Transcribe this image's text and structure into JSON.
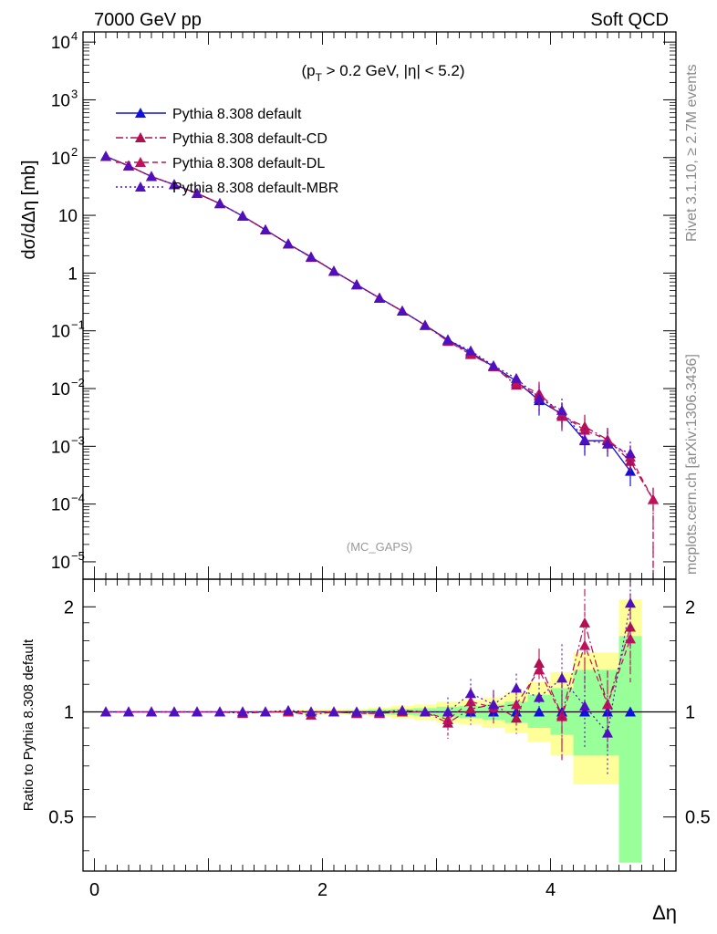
{
  "header": {
    "left": "7000 GeV pp",
    "right": "Soft QCD"
  },
  "side_text": {
    "rivet": "Rivet 3.1.10, ≥ 2.7M events",
    "site": "mcplots.cern.ch [arXiv:1306.3436]"
  },
  "colors": {
    "default": "#1010dd",
    "cd": "#b01050",
    "dl": "#c0105a",
    "mbr": "#5010c0",
    "band_yellow": "#ffff99",
    "band_green": "#99ff99"
  },
  "chart_data": [
    {
      "type": "line",
      "title": "",
      "xlabel": "Δη",
      "ylabel": "dσ/dΔη [mb]",
      "yscale": "log",
      "ylim": [
        5e-06,
        15000
      ],
      "xlim": [
        -0.1,
        5.1
      ],
      "annotation": "(p_T > 0.2 GeV, |η| < 5.2)",
      "watermark": "(MC_GAPS)",
      "legend_position": "top-left",
      "series": [
        {
          "name": "Pythia 8.308 default",
          "x": [
            0.1,
            0.3,
            0.5,
            0.7,
            0.9,
            1.1,
            1.3,
            1.5,
            1.7,
            1.9,
            2.1,
            2.3,
            2.5,
            2.7,
            2.9,
            3.1,
            3.3,
            3.5,
            3.7,
            3.9,
            4.1,
            4.3,
            4.5,
            4.7
          ],
          "y": [
            105,
            72,
            47,
            34,
            24,
            16,
            9.7,
            5.6,
            3.2,
            1.9,
            1.08,
            0.63,
            0.37,
            0.22,
            0.125,
            0.07,
            0.042,
            0.024,
            0.0135,
            0.0062,
            0.0036,
            0.00125,
            0.00125,
            0.00037
          ]
        },
        {
          "name": "Pythia 8.308 default-CD",
          "x": [
            0.1,
            0.3,
            0.5,
            0.7,
            0.9,
            1.1,
            1.3,
            1.5,
            1.7,
            1.9,
            2.1,
            2.3,
            2.5,
            2.7,
            2.9,
            3.1,
            3.3,
            3.5,
            3.7,
            3.9,
            4.1,
            4.3,
            4.5,
            4.7,
            4.9
          ],
          "y": [
            105,
            72,
            47,
            34,
            24,
            16,
            9.7,
            5.6,
            3.2,
            1.87,
            1.08,
            0.63,
            0.37,
            0.22,
            0.125,
            0.066,
            0.039,
            0.024,
            0.0115,
            0.0075,
            0.0033,
            0.0022,
            0.0013,
            0.00055,
            0.00012
          ]
        },
        {
          "name": "Pythia 8.308 default-DL",
          "x": [
            0.1,
            0.3,
            0.5,
            0.7,
            0.9,
            1.1,
            1.3,
            1.5,
            1.7,
            1.9,
            2.1,
            2.3,
            2.5,
            2.7,
            2.9,
            3.1,
            3.3,
            3.5,
            3.7,
            3.9,
            4.1,
            4.3,
            4.5,
            4.7,
            4.9
          ],
          "y": [
            105,
            72,
            47,
            34,
            24,
            16,
            9.7,
            5.6,
            3.2,
            1.9,
            1.08,
            0.63,
            0.37,
            0.22,
            0.125,
            0.068,
            0.04,
            0.024,
            0.0125,
            0.0082,
            0.0035,
            0.0019,
            0.0013,
            0.00065,
            0.00012
          ]
        },
        {
          "name": "Pythia 8.308 default-MBR",
          "x": [
            0.1,
            0.3,
            0.5,
            0.7,
            0.9,
            1.1,
            1.3,
            1.5,
            1.7,
            1.9,
            2.1,
            2.3,
            2.5,
            2.7,
            2.9,
            3.1,
            3.3,
            3.5,
            3.7,
            3.9,
            4.1,
            4.3,
            4.5,
            4.7
          ],
          "y": [
            105,
            72,
            47,
            34,
            24,
            16,
            9.7,
            5.6,
            3.2,
            1.9,
            1.08,
            0.63,
            0.37,
            0.22,
            0.125,
            0.07,
            0.045,
            0.025,
            0.015,
            0.0068,
            0.0042,
            0.0013,
            0.0011,
            0.00075
          ]
        }
      ]
    },
    {
      "type": "line",
      "title": "",
      "xlabel": "Δη",
      "ylabel": "Ratio to Pythia 8.308 default",
      "yscale": "log",
      "ylim": [
        0.35,
        2.4
      ],
      "xlim": [
        -0.1,
        5.1
      ],
      "yticks": [
        "0.5",
        "1",
        "2"
      ],
      "xticks": [
        "0",
        "2",
        "4"
      ],
      "series": [
        {
          "name": "Pythia 8.308 default-CD",
          "x": [
            0.1,
            0.3,
            0.5,
            0.7,
            0.9,
            1.1,
            1.3,
            1.5,
            1.7,
            1.9,
            2.1,
            2.3,
            2.5,
            2.7,
            2.9,
            3.1,
            3.3,
            3.5,
            3.7,
            3.9,
            4.1,
            4.3,
            4.5,
            4.7
          ],
          "y": [
            1.0,
            1.0,
            1.0,
            1.0,
            1.0,
            1.0,
            0.99,
            1.0,
            1.0,
            0.98,
            1.0,
            0.99,
            0.99,
            1.0,
            1.0,
            0.93,
            1.02,
            1.05,
            0.96,
            1.38,
            0.98,
            1.8,
            1.05,
            1.75
          ]
        },
        {
          "name": "Pythia 8.308 default-DL",
          "x": [
            0.1,
            0.3,
            0.5,
            0.7,
            0.9,
            1.1,
            1.3,
            1.5,
            1.7,
            1.9,
            2.1,
            2.3,
            2.5,
            2.7,
            2.9,
            3.1,
            3.3,
            3.5,
            3.7,
            3.9,
            4.1,
            4.3,
            4.5,
            4.7
          ],
          "y": [
            1.0,
            1.0,
            1.0,
            1.0,
            1.0,
            1.0,
            1.0,
            1.0,
            1.0,
            1.0,
            1.0,
            0.99,
            0.99,
            1.01,
            1.0,
            0.95,
            1.07,
            1.03,
            1.05,
            1.32,
            0.97,
            1.55,
            1.05,
            1.62
          ]
        },
        {
          "name": "Pythia 8.308 default-MBR",
          "x": [
            0.1,
            0.3,
            0.5,
            0.7,
            0.9,
            1.1,
            1.3,
            1.5,
            1.7,
            1.9,
            2.1,
            2.3,
            2.5,
            2.7,
            2.9,
            3.1,
            3.3,
            3.5,
            3.7,
            3.9,
            4.1,
            4.3,
            4.5,
            4.7
          ],
          "y": [
            1.0,
            1.0,
            1.0,
            1.0,
            1.0,
            1.0,
            1.0,
            1.0,
            1.01,
            1.0,
            1.0,
            1.0,
            1.0,
            1.01,
            1.0,
            1.0,
            1.13,
            1.05,
            1.17,
            1.1,
            1.25,
            1.04,
            0.87,
            2.05
          ]
        }
      ],
      "band": {
        "x_edges": [
          0.0,
          0.2,
          0.4,
          0.6,
          0.8,
          1.0,
          1.2,
          1.4,
          1.6,
          1.8,
          2.0,
          2.2,
          2.4,
          2.6,
          2.8,
          3.0,
          3.2,
          3.4,
          3.6,
          3.8,
          4.0,
          4.2,
          4.4,
          4.6,
          4.8
        ],
        "yellow_lo": [
          0.995,
          0.995,
          0.995,
          0.995,
          0.995,
          0.995,
          0.995,
          0.99,
          0.99,
          0.985,
          0.985,
          0.98,
          0.97,
          0.96,
          0.95,
          0.93,
          0.92,
          0.9,
          0.87,
          0.82,
          0.75,
          0.62,
          0.62,
          0.62
        ],
        "yellow_hi": [
          1.005,
          1.005,
          1.005,
          1.005,
          1.005,
          1.005,
          1.005,
          1.01,
          1.01,
          1.015,
          1.015,
          1.02,
          1.03,
          1.04,
          1.05,
          1.07,
          1.08,
          1.1,
          1.14,
          1.22,
          1.3,
          1.48,
          1.48,
          2.1
        ],
        "green_lo": [
          0.997,
          0.997,
          0.997,
          0.997,
          0.997,
          0.997,
          0.997,
          0.995,
          0.995,
          0.992,
          0.992,
          0.99,
          0.985,
          0.98,
          0.975,
          0.965,
          0.96,
          0.95,
          0.93,
          0.9,
          0.86,
          0.75,
          0.75,
          0.37
        ],
        "green_hi": [
          1.003,
          1.003,
          1.003,
          1.003,
          1.003,
          1.003,
          1.003,
          1.005,
          1.005,
          1.008,
          1.008,
          1.01,
          1.015,
          1.02,
          1.025,
          1.035,
          1.04,
          1.05,
          1.07,
          1.12,
          1.17,
          1.32,
          1.32,
          1.65
        ]
      }
    }
  ]
}
